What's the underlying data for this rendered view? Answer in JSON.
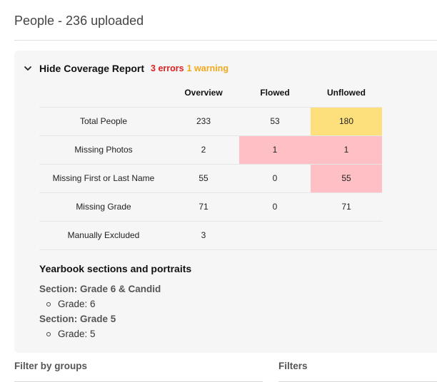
{
  "page": {
    "title": "People - 236 uploaded"
  },
  "coverage": {
    "toggle_label": "Hide Coverage Report",
    "errors_text": "3 errors",
    "warnings_text": "1 warning",
    "columns": [
      "",
      "Overview",
      "Flowed",
      "Unflowed"
    ],
    "rows": [
      {
        "label": "Total People",
        "overview": "233",
        "flowed": "53",
        "unflowed": "180"
      },
      {
        "label": "Missing Photos",
        "overview": "2",
        "flowed": "1",
        "unflowed": "1"
      },
      {
        "label": "Missing First or Last Name",
        "overview": "55",
        "flowed": "0",
        "unflowed": "55"
      },
      {
        "label": "Missing Grade",
        "overview": "71",
        "flowed": "0",
        "unflowed": "71"
      },
      {
        "label": "Manually Excluded",
        "overview": "3",
        "flowed": "",
        "unflowed": ""
      }
    ],
    "colors": {
      "warning": "#fde07b",
      "error": "#ffc0c5",
      "error_text": "#e02020",
      "warning_text": "#f0a81c"
    }
  },
  "sections": {
    "title": "Yearbook sections and portraits",
    "items": [
      {
        "name": "Section: Grade 6 & Candid",
        "grade": "Grade: 6"
      },
      {
        "name": "Section: Grade 5",
        "grade": "Grade: 5"
      }
    ]
  },
  "filters": {
    "groups_label": "Filter by groups",
    "filters_label": "Filters"
  }
}
